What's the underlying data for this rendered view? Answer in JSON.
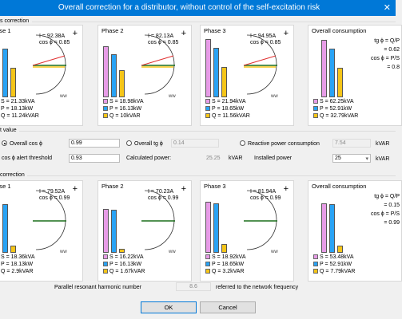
{
  "window": {
    "title": "Overall correction for a distributor, without control of the self-excitation risk"
  },
  "section_top": {
    "label": "s correction"
  },
  "section_mid": {
    "label": "t value"
  },
  "section_bot": {
    "label": "correction"
  },
  "colors": {
    "s": "#e79ce7",
    "p": "#29a3f5",
    "q": "#f5c518"
  },
  "top_panels": [
    {
      "title": "hase 1",
      "current": "I = 92.38A",
      "cos": "cos ϕ = 0.85",
      "S": "S = 21.33kVA",
      "P": "P = 18.13kW",
      "Q": "Q = 11.24kVAR",
      "bar_s": 0.92,
      "bar_p": 0.78,
      "bar_q": 0.48
    },
    {
      "title": "Phase 2",
      "current": "I = 82.13A",
      "cos": "cos ϕ = 0.85",
      "S": "S = 18.98kVA",
      "P": "P = 16.13kW",
      "Q": "Q = 10kVAR",
      "bar_s": 0.82,
      "bar_p": 0.69,
      "bar_q": 0.43
    },
    {
      "title": "Phase 3",
      "current": "I = 94.95A",
      "cos": "cos ϕ = 0.85",
      "S": "S = 21.94kVA",
      "P": "P = 18.65kW",
      "Q": "Q = 11.56kVAR",
      "bar_s": 0.94,
      "bar_p": 0.8,
      "bar_q": 0.49
    }
  ],
  "top_overall": {
    "title": "Overall consumption",
    "tan1": "tg ϕ = Q/P",
    "tan2": "= 0.62",
    "cos1": "cos ϕ = P/S",
    "cos2": "= 0.8",
    "S": "S = 62.25kVA",
    "P": "P = 52.91kW",
    "Q": "Q = 32.79kVAR",
    "bar_s": 0.92,
    "bar_p": 0.78,
    "bar_q": 0.48
  },
  "target": {
    "overall_cos_label": "Overall cos ϕ",
    "overall_cos_value": "0.99",
    "overall_tg_label": "Overall tg ϕ",
    "overall_tg_value": "0.14",
    "reactive_label": "Reactive power consumption",
    "reactive_value": "7.54",
    "reactive_unit": "kVAR",
    "alert_label": "cos ϕ alert threshold",
    "alert_value": "0.93",
    "calc_label": "Calculated power:",
    "calc_value": "25.25",
    "calc_unit": "kVAR",
    "installed_label": "Installed power",
    "installed_value": "25",
    "installed_unit": "kVAR"
  },
  "bot_panels": [
    {
      "title": "hase 1",
      "current": "I = 79.52A",
      "cos": "cos ϕ = 0.99",
      "S": "S = 18.36kVA",
      "P": "P = 18.13kW",
      "Q": "Q = 2.9kVAR",
      "bar_s": 0.8,
      "bar_p": 0.78,
      "bar_q": 0.12
    },
    {
      "title": "Phase 2",
      "current": "I = 70.23A",
      "cos": "cos ϕ = 0.99",
      "S": "S = 16.22kVA",
      "P": "P = 16.13kW",
      "Q": "Q = 1.67kVAR",
      "bar_s": 0.7,
      "bar_p": 0.69,
      "bar_q": 0.07
    },
    {
      "title": "Phase 3",
      "current": "I = 81.94A",
      "cos": "cos ϕ = 0.99",
      "S": "S = 18.92kVA",
      "P": "P = 18.65kW",
      "Q": "Q = 3.2kVAR",
      "bar_s": 0.82,
      "bar_p": 0.8,
      "bar_q": 0.14
    }
  ],
  "bot_overall": {
    "title": "Overall consumption",
    "tan1": "tg ϕ = Q/P",
    "tan2": "= 0.15",
    "cos1": "cos ϕ = P/S",
    "cos2": "= 0.99",
    "S": "S = 53.48kVA",
    "P": "P = 52.91kW",
    "Q": "Q = 7.79kVAR",
    "bar_s": 0.8,
    "bar_p": 0.78,
    "bar_q": 0.12
  },
  "footer": {
    "harmonic_label": "Parallel resonant harmonic number",
    "harmonic_value": "8.6",
    "harmonic_suffix": "referred to the network frequency",
    "ok": "OK",
    "cancel": "Cancel"
  }
}
